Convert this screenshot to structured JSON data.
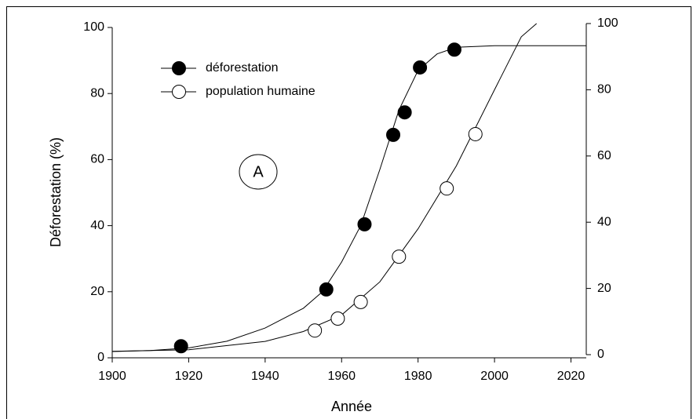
{
  "chart_data": {
    "type": "scatter",
    "x_label": "Année",
    "y_label": "Déforestation (%)",
    "annotation": "A",
    "xlim": [
      1900,
      2024
    ],
    "xticks": [
      1900,
      1920,
      1940,
      1960,
      1980,
      2000,
      2020
    ],
    "ylim": [
      0,
      100
    ],
    "yticks": [
      0,
      20,
      40,
      60,
      80,
      100
    ],
    "y2lim": [
      0,
      100
    ],
    "y2ticks": [
      0,
      20,
      40,
      60,
      80,
      100
    ],
    "legend": "upper left",
    "series": [
      {
        "name": "déforestation",
        "color": "#000000",
        "filled": true,
        "x": [
          1918,
          1956,
          1966,
          1973.5,
          1976.5,
          1980.5,
          1989.5
        ],
        "values": [
          3.5,
          20.7,
          40.4,
          67.5,
          74.3,
          87.9,
          93.3
        ],
        "fit_x": [
          1900,
          1910,
          1920,
          1930,
          1940,
          1950,
          1955,
          1960,
          1965,
          1970,
          1975,
          1980,
          1985,
          1990,
          2000,
          2024
        ],
        "fit_values": [
          1.9,
          2.2,
          3,
          5,
          9,
          15,
          20,
          29,
          40,
          57,
          75,
          87,
          92,
          94,
          94.5,
          94.5
        ]
      },
      {
        "name": "population humaine",
        "color": "#000000",
        "filled": false,
        "axis": "y2",
        "x": [
          1953,
          1959,
          1965,
          1975,
          1987.5,
          1995
        ],
        "values": [
          7.3,
          10.9,
          15.9,
          29.6,
          50.2,
          66.6
        ],
        "fit_x": [
          1900,
          1920,
          1940,
          1950,
          1960,
          1970,
          1980,
          1990,
          2000,
          2007,
          2011
        ],
        "fit_values": [
          1,
          1.5,
          4,
          7,
          12,
          22,
          38,
          57,
          80,
          96,
          100
        ]
      }
    ]
  }
}
